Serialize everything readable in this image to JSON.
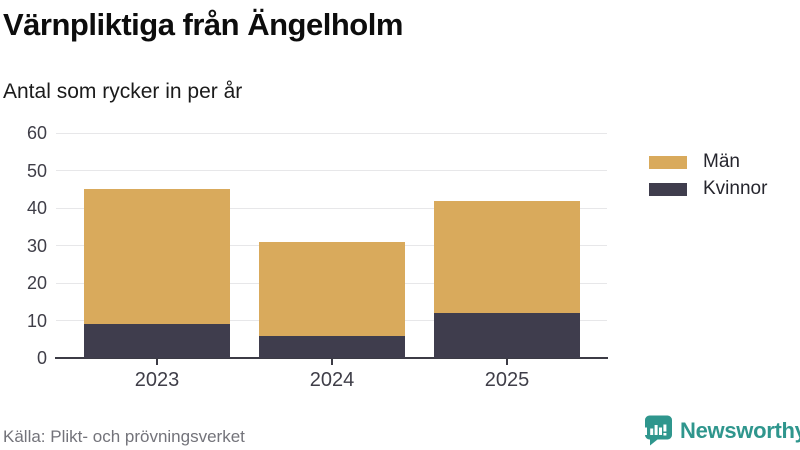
{
  "header": {
    "title": "Värnpliktiga från Ängelholm",
    "subtitle": "Antal som rycker in per år"
  },
  "chart_data": {
    "type": "bar",
    "stacked": true,
    "title": "Värnpliktiga från Ängelholm",
    "subtitle": "Antal som rycker in per år",
    "categories": [
      "2023",
      "2024",
      "2025"
    ],
    "series": [
      {
        "name": "Män",
        "color": "#d9aa5c",
        "values": [
          36,
          25,
          30
        ]
      },
      {
        "name": "Kvinnor",
        "color": "#3f3d4d",
        "values": [
          9,
          6,
          12
        ]
      }
    ],
    "stack_totals": [
      45,
      31,
      42
    ],
    "xlabel": "",
    "ylabel": "",
    "ylim": [
      0,
      60
    ],
    "yticks": [
      0,
      10,
      20,
      30,
      40,
      50,
      60
    ],
    "grid": true,
    "gridline_color": "#e7e7e9",
    "axis_color": "#3c3b45",
    "legend_position": "right"
  },
  "footer": {
    "source": "Källa: Plikt- och prövningsverket",
    "brand": "Newsworthy",
    "brand_color": "#2f968d"
  }
}
